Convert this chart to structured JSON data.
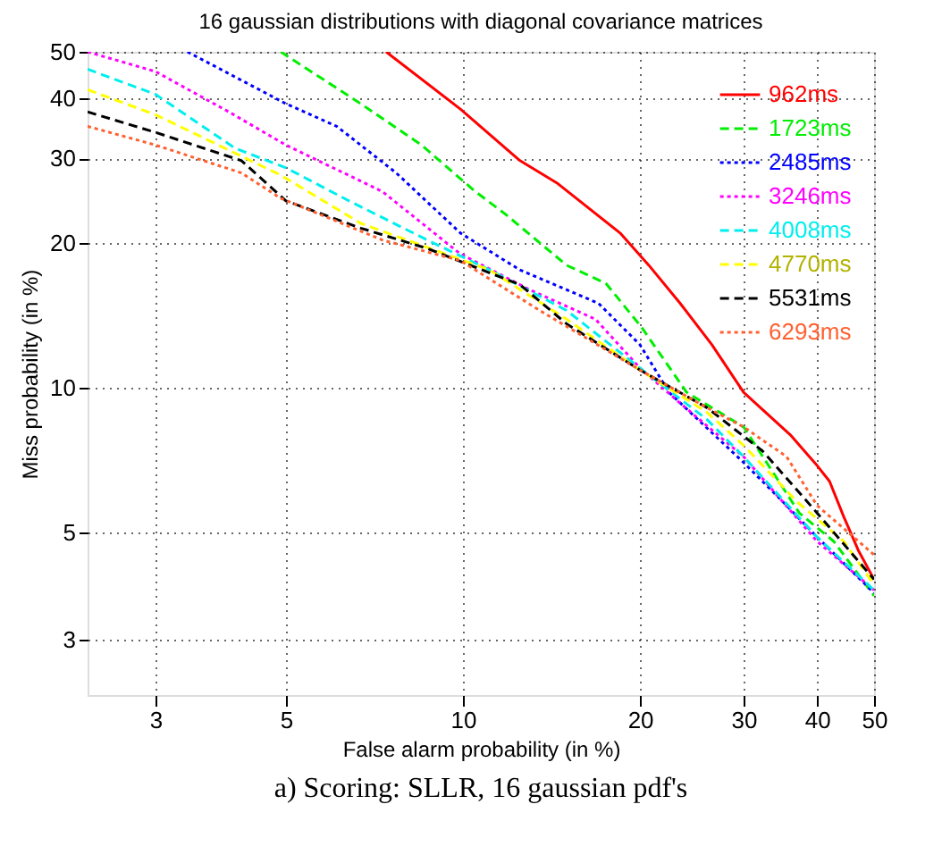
{
  "chart_data": {
    "type": "line",
    "title": "16 gaussian distributions with diagonal covariance matrices",
    "xlabel": "False alarm probability (in %)",
    "ylabel": "Miss probability (in %)",
    "annotations": [
      "a) Scoring: SLLR, 16 gaussian pdf's"
    ],
    "log": "xy",
    "xlim": [
      2.3,
      50
    ],
    "ylim": [
      2.3,
      50
    ],
    "xticks": [
      3,
      5,
      10,
      20,
      30,
      40,
      50
    ],
    "yticks": [
      3,
      5,
      10,
      20,
      30,
      40,
      50
    ],
    "grid": true,
    "legend": "top right",
    "marker": "none",
    "series": [
      {
        "name": "962ms",
        "color": "#ff0000",
        "line_style": "solid",
        "x": [
          7.4,
          9.9,
          12.5,
          14.5,
          18.5,
          20.7,
          23.4,
          26.5,
          30,
          32.7,
          36,
          40,
          42,
          44.4,
          47,
          50
        ],
        "values": [
          50,
          38,
          29.7,
          26.6,
          21,
          18,
          15,
          12.3,
          9.8,
          8.9,
          8,
          6.9,
          6.4,
          5.4,
          4.6,
          4
        ]
      },
      {
        "name": "1723ms",
        "color": "#00ee00",
        "line_style": "dashed",
        "x": [
          4.9,
          6.7,
          8.5,
          10.5,
          11.8,
          15,
          17.5,
          20.1,
          24,
          30,
          37.3,
          42.7,
          44.4,
          50
        ],
        "values": [
          50,
          39,
          32,
          25.6,
          23,
          18,
          16.5,
          13.4,
          9.8,
          8.3,
          5.5,
          4.8,
          4.5,
          3.7
        ]
      },
      {
        "name": "2485ms",
        "color": "#0000ff",
        "line_style": "dotted",
        "x": [
          3.4,
          5,
          6.1,
          7.7,
          9.9,
          12.5,
          17,
          20,
          22.4,
          30,
          35,
          40,
          50
        ],
        "values": [
          50,
          39,
          35,
          28,
          21,
          17.6,
          15,
          12.3,
          9.8,
          7,
          5.8,
          4.9,
          3.75
        ]
      },
      {
        "name": "3246ms",
        "color": "#ff00ff",
        "line_style": "dotted",
        "x": [
          2.3,
          3,
          4,
          5,
          7.3,
          9.9,
          13,
          16.8,
          20,
          23.4,
          30,
          40,
          50
        ],
        "values": [
          50,
          45.5,
          37.5,
          32,
          25.6,
          19,
          16,
          13.9,
          11,
          9.3,
          7.2,
          4.8,
          3.8
        ]
      },
      {
        "name": "4008ms",
        "color": "#00eeee",
        "line_style": "dashed",
        "x": [
          2.3,
          3,
          4.1,
          5,
          6.4,
          8.7,
          11.1,
          15,
          20,
          26,
          30,
          40,
          50
        ],
        "values": [
          46,
          40.8,
          31.5,
          28.7,
          24.5,
          20.3,
          17.6,
          14.5,
          11,
          8.6,
          7.2,
          4.9,
          3.8
        ]
      },
      {
        "name": "4770ms",
        "color": "#ffff00",
        "line_style": "dashed",
        "x": [
          2.3,
          3,
          4.9,
          6.7,
          11.1,
          15,
          20,
          26,
          30,
          37,
          44.4,
          50
        ],
        "values": [
          41.7,
          37,
          27.7,
          22,
          17.6,
          13.9,
          10.9,
          8.9,
          7.6,
          5.8,
          4.8,
          3.9
        ]
      },
      {
        "name": "5531ms",
        "color": "#000000",
        "line_style": "dashed",
        "x": [
          2.3,
          3,
          4.2,
          5,
          6.7,
          8.7,
          12.5,
          15,
          20,
          26,
          32.3,
          40,
          50
        ],
        "values": [
          37.5,
          34,
          29.7,
          24.5,
          21.5,
          19.5,
          16.4,
          13.6,
          10.9,
          9.1,
          7.4,
          5.5,
          4
        ]
      },
      {
        "name": "6293ms",
        "color": "#ff6030",
        "line_style": "dotted",
        "x": [
          2.3,
          3,
          4.2,
          4.9,
          7.3,
          9.9,
          13.5,
          20,
          26,
          30,
          35.5,
          40,
          50
        ],
        "values": [
          35,
          32,
          28,
          24.8,
          20.3,
          18.4,
          14.5,
          10.9,
          9.1,
          8.3,
          7.2,
          5.7,
          4.5
        ]
      }
    ]
  }
}
